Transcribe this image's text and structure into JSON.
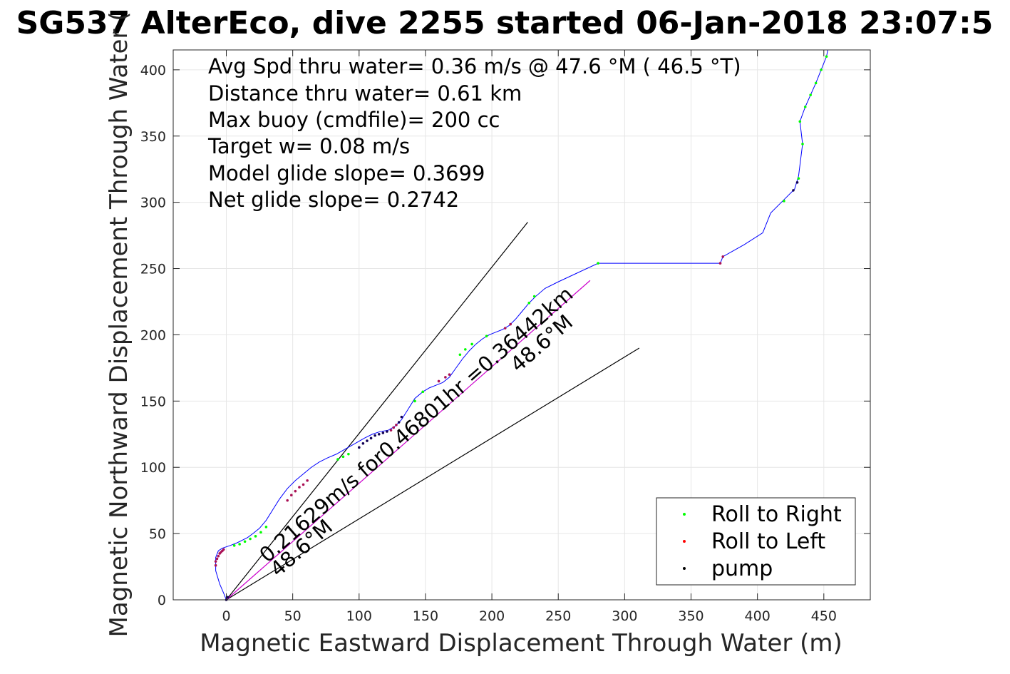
{
  "chart_data": {
    "type": "scatter",
    "title": "SG537 AlterEco, dive 2255 started 06-Jan-2018 23:07:5",
    "xlabel": "Magnetic Eastward Displacement Through Water (m)",
    "ylabel": "Magnetic Northward Displacement Through Water (",
    "xlim": [
      -40,
      485
    ],
    "ylim": [
      0,
      415
    ],
    "xticks": [
      0,
      50,
      100,
      150,
      200,
      250,
      300,
      350,
      400,
      450
    ],
    "yticks": [
      0,
      50,
      100,
      150,
      200,
      250,
      300,
      350,
      400
    ],
    "grid": true,
    "annotations": [
      "Avg Spd thru water=  0.36 m/s @  47.6 °M ( 46.5 °T)",
      "Distance thru water=  0.61 km",
      "Max buoy (cmdfile)= 200 cc",
      "Target w= 0.08 m/s",
      "Model glide slope= 0.3699",
      "Net glide slope= 0.2742"
    ],
    "rotated_labels": {
      "heading_line": "48.6°M",
      "track_line": "0.21629m/s for0.46801hr =0.36442km",
      "track_heading": "48.6°M"
    },
    "track": {
      "x": [
        0,
        -2,
        -5,
        -8,
        -8,
        -6,
        -3,
        0,
        3,
        8,
        12,
        16,
        20,
        25,
        30,
        35,
        40,
        46,
        52,
        58,
        64,
        70,
        76,
        83,
        90,
        97,
        104,
        110,
        116,
        122,
        127,
        132,
        137,
        142,
        148,
        153,
        158,
        163,
        168,
        173,
        178,
        183,
        188,
        193,
        198,
        203,
        208,
        213,
        218,
        223,
        228,
        233,
        240,
        250,
        265,
        280,
        330,
        372,
        374,
        390,
        404,
        410,
        420,
        428,
        431,
        434,
        432,
        436,
        440,
        444,
        448,
        452,
        453
      ],
      "y": [
        0,
        5,
        12,
        22,
        32,
        37,
        39,
        40,
        41,
        43,
        45,
        47,
        50,
        54,
        60,
        68,
        76,
        84,
        90,
        95,
        100,
        104,
        107,
        110,
        114,
        118,
        122,
        125,
        127,
        128,
        131,
        136,
        144,
        152,
        157,
        160,
        162,
        164,
        168,
        175,
        182,
        188,
        193,
        197,
        200,
        202,
        204,
        207,
        212,
        218,
        224,
        229,
        235,
        240,
        247,
        254,
        254,
        254,
        259,
        268,
        277,
        292,
        302,
        310,
        320,
        344,
        361,
        372,
        381,
        390,
        400,
        410,
        415
      ]
    },
    "series": [
      {
        "name": "Roll to Right",
        "color": "#00ff00",
        "x": [
          6,
          10,
          14,
          18,
          22,
          26,
          30,
          84,
          88,
          92,
          142,
          148,
          176,
          180,
          185,
          196,
          228,
          232,
          280,
          420,
          431,
          434,
          432,
          436,
          440,
          444,
          448,
          452
        ],
        "y": [
          41,
          42,
          44,
          46,
          48,
          51,
          55,
          106,
          108,
          110,
          150,
          157,
          185,
          189,
          193,
          199,
          224,
          229,
          254,
          301,
          318,
          344,
          361,
          372,
          381,
          390,
          400,
          410
        ]
      },
      {
        "name": "Roll to Left",
        "color": "#ff0000",
        "x": [
          -8,
          -8,
          -7,
          -6,
          -5,
          -4,
          -3,
          -2,
          46,
          49,
          52,
          55,
          58,
          61,
          124,
          126,
          128,
          168,
          165,
          160,
          210,
          214,
          372,
          374
        ],
        "y": [
          26,
          29,
          31,
          33,
          35,
          36,
          37,
          38,
          75,
          79,
          82,
          85,
          87,
          90,
          128,
          130,
          132,
          170,
          168,
          165,
          205,
          208,
          254,
          259
        ],
        "mark_color": "#aa1155"
      },
      {
        "name": "pump",
        "color": "#000000",
        "x": [
          0,
          1,
          100,
          103,
          106,
          109,
          112,
          115,
          118,
          121,
          130,
          132,
          427,
          430
        ],
        "y": [
          0,
          2,
          115,
          118,
          120,
          122,
          124,
          125,
          126,
          127,
          134,
          138,
          309,
          315
        ],
        "mark_color": "#110055"
      }
    ],
    "reference_lines": [
      {
        "x": [
          0,
          227
        ],
        "y": [
          0,
          285
        ],
        "color": "#000000"
      },
      {
        "x": [
          0,
          311
        ],
        "y": [
          0,
          190
        ],
        "color": "#000000"
      },
      {
        "x": [
          0,
          274
        ],
        "y": [
          0,
          241
        ],
        "color": "#cc00cc"
      }
    ],
    "legend": {
      "placement": "bottom-right",
      "entries": [
        "Roll to Right",
        "Roll to Left",
        "pump"
      ]
    },
    "colors": {
      "track": "#0000ff",
      "grid": "#e6e6e6",
      "axis": "#262626"
    }
  }
}
